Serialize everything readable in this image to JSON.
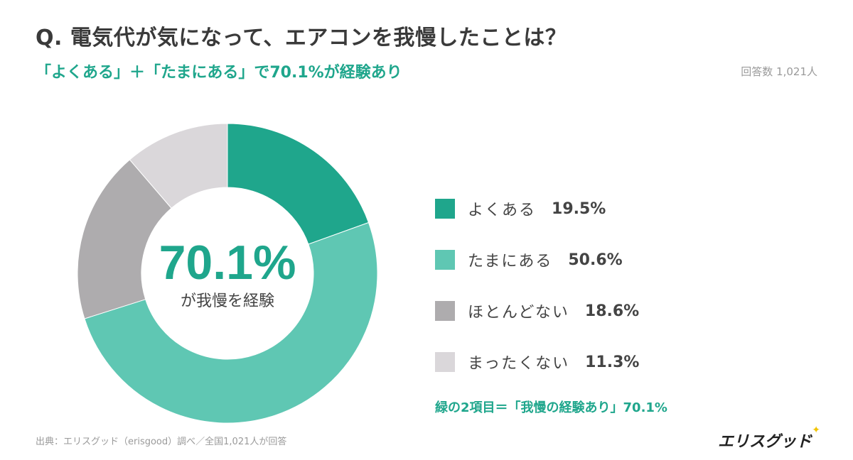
{
  "header": {
    "title": "Q. 電気代が気になって、エアコンを我慢したことは？",
    "subtitle": "「よくある」＋「たまにある」で70.1%が経験あり",
    "respondents": "回答数 1,021人"
  },
  "center": {
    "value": "70.1%",
    "caption": "が我慢を経験"
  },
  "summary": "緑の2項目＝「我慢の経験あり」70.1%",
  "footer": {
    "source": "出典：エリスグッド（erisgood）調べ／全国1,021人が回答",
    "logo": "エリスグッド"
  },
  "chart_data": {
    "type": "pie",
    "donut": true,
    "categories": [
      "よくある",
      "たまにある",
      "ほとんどない",
      "まったくない"
    ],
    "values": [
      19.5,
      50.6,
      18.6,
      11.3
    ],
    "value_labels": [
      "19.5%",
      "50.6%",
      "18.6%",
      "11.3%"
    ],
    "colors": [
      "#1fa68c",
      "#5fc7b3",
      "#aeacae",
      "#dad7da"
    ],
    "legend_placement": "right"
  }
}
